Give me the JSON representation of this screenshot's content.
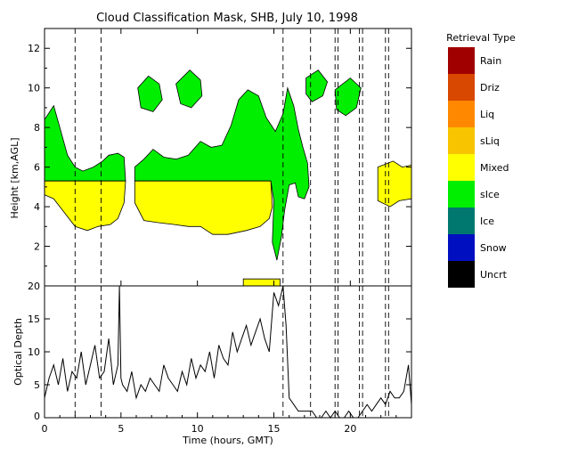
{
  "figure": {
    "title": "Cloud Classification Mask, SHB, July 10, 1998"
  },
  "chart_data": [
    {
      "type": "heatmap",
      "panel": "mask",
      "ylabel": "Height [km,AGL]",
      "xlim": [
        0,
        24
      ],
      "ylim": [
        0,
        13
      ],
      "x_ticks": [
        0,
        5,
        10,
        15,
        20
      ],
      "y_ticks": [
        2,
        4,
        6,
        8,
        10,
        12
      ],
      "grid": false,
      "categories": [
        "Rain",
        "Driz",
        "Liq",
        "sLiq",
        "Mixed",
        "sIce",
        "Ice",
        "Snow",
        "Uncrt"
      ],
      "legend": {
        "title": "Retrieval Type",
        "placement": "right",
        "items": [
          {
            "label": "Rain",
            "color": "#a00000"
          },
          {
            "label": "Driz",
            "color": "#d84800"
          },
          {
            "label": "Liq",
            "color": "#ff8800"
          },
          {
            "label": "sLiq",
            "color": "#f8c400"
          },
          {
            "label": "Mixed",
            "color": "#ffff00"
          },
          {
            "label": "sIce",
            "color": "#00ee00"
          },
          {
            "label": "Ice",
            "color": "#007870"
          },
          {
            "label": "Snow",
            "color": "#0010c0"
          },
          {
            "label": "Uncrt",
            "color": "#000000"
          }
        ]
      },
      "regions": [
        {
          "category": "sIce",
          "color": "#00ee00",
          "points": [
            [
              0,
              8.4
            ],
            [
              0.6,
              9.1
            ],
            [
              1.0,
              8.0
            ],
            [
              1.5,
              6.6
            ],
            [
              2.0,
              6.0
            ],
            [
              2.5,
              5.8
            ],
            [
              3.2,
              6.0
            ],
            [
              3.8,
              6.3
            ],
            [
              4.2,
              6.6
            ],
            [
              4.8,
              6.7
            ],
            [
              5.2,
              6.5
            ],
            [
              5.3,
              5.3
            ],
            [
              0,
              5.3
            ]
          ]
        },
        {
          "category": "sIce",
          "color": "#00ee00",
          "points": [
            [
              5.9,
              6.0
            ],
            [
              6.5,
              6.4
            ],
            [
              7.1,
              6.9
            ],
            [
              7.8,
              6.5
            ],
            [
              8.6,
              6.4
            ],
            [
              9.4,
              6.6
            ],
            [
              10.2,
              7.3
            ],
            [
              10.9,
              7.0
            ],
            [
              11.6,
              7.1
            ],
            [
              12.2,
              8.1
            ],
            [
              12.7,
              9.4
            ],
            [
              13.3,
              9.9
            ],
            [
              14.0,
              9.6
            ],
            [
              14.5,
              8.5
            ],
            [
              15.1,
              7.8
            ],
            [
              15.6,
              8.7
            ],
            [
              15.9,
              10.0
            ],
            [
              16.3,
              9.1
            ],
            [
              16.6,
              7.9
            ],
            [
              16.9,
              7.0
            ],
            [
              17.2,
              6.2
            ],
            [
              17.3,
              5.0
            ],
            [
              17.0,
              4.4
            ],
            [
              16.6,
              4.5
            ],
            [
              16.4,
              5.2
            ],
            [
              16.0,
              5.1
            ],
            [
              15.7,
              3.8
            ],
            [
              15.5,
              2.5
            ],
            [
              15.2,
              1.3
            ],
            [
              14.9,
              2.2
            ],
            [
              15.0,
              4.3
            ],
            [
              14.8,
              5.3
            ],
            [
              5.9,
              5.3
            ]
          ]
        },
        {
          "category": "sIce",
          "color": "#00ee00",
          "points": [
            [
              6.1,
              10.0
            ],
            [
              6.8,
              10.6
            ],
            [
              7.5,
              10.2
            ],
            [
              7.7,
              9.4
            ],
            [
              7.1,
              8.8
            ],
            [
              6.3,
              9.0
            ]
          ]
        },
        {
          "category": "sIce",
          "color": "#00ee00",
          "points": [
            [
              8.6,
              10.2
            ],
            [
              9.5,
              10.9
            ],
            [
              10.2,
              10.4
            ],
            [
              10.3,
              9.6
            ],
            [
              9.6,
              9.0
            ],
            [
              8.9,
              9.2
            ]
          ]
        },
        {
          "category": "sIce",
          "color": "#00ee00",
          "points": [
            [
              17.1,
              10.5
            ],
            [
              17.9,
              10.9
            ],
            [
              18.5,
              10.3
            ],
            [
              18.2,
              9.6
            ],
            [
              17.5,
              9.3
            ],
            [
              17.1,
              9.7
            ]
          ]
        },
        {
          "category": "sIce",
          "color": "#00ee00",
          "points": [
            [
              19.0,
              9.9
            ],
            [
              20.0,
              10.5
            ],
            [
              20.7,
              10.0
            ],
            [
              20.4,
              9.0
            ],
            [
              19.7,
              8.6
            ],
            [
              19.1,
              8.9
            ]
          ]
        },
        {
          "category": "Mixed",
          "color": "#ffff00",
          "points": [
            [
              0,
              5.3
            ],
            [
              5.3,
              5.3
            ],
            [
              5.2,
              4.2
            ],
            [
              4.8,
              3.4
            ],
            [
              4.3,
              3.1
            ],
            [
              3.5,
              3.0
            ],
            [
              2.8,
              2.8
            ],
            [
              2.0,
              3.0
            ],
            [
              1.3,
              3.7
            ],
            [
              0.6,
              4.4
            ],
            [
              0,
              4.6
            ]
          ]
        },
        {
          "category": "Mixed",
          "color": "#ffff00",
          "points": [
            [
              5.9,
              5.3
            ],
            [
              14.8,
              5.3
            ],
            [
              14.9,
              4.0
            ],
            [
              14.7,
              3.4
            ],
            [
              14.1,
              3.0
            ],
            [
              13.2,
              2.8
            ],
            [
              12.0,
              2.6
            ],
            [
              11.0,
              2.6
            ],
            [
              10.2,
              3.0
            ],
            [
              9.4,
              3.0
            ],
            [
              8.5,
              3.1
            ],
            [
              7.4,
              3.2
            ],
            [
              6.5,
              3.3
            ],
            [
              5.9,
              4.2
            ]
          ]
        },
        {
          "category": "Mixed",
          "color": "#ffff00",
          "points": [
            [
              21.8,
              6.0
            ],
            [
              22.8,
              6.3
            ],
            [
              23.4,
              6.0
            ],
            [
              24.0,
              6.1
            ],
            [
              24.0,
              4.4
            ],
            [
              23.2,
              4.3
            ],
            [
              22.6,
              4.0
            ],
            [
              21.8,
              4.3
            ]
          ]
        },
        {
          "category": "Mixed",
          "color": "#ffff00",
          "points": [
            [
              13.0,
              0.35
            ],
            [
              15.4,
              0.35
            ],
            [
              15.4,
              0.0
            ],
            [
              13.0,
              0.0
            ]
          ]
        }
      ],
      "marker_lines_x": [
        2.0,
        3.7,
        15.6,
        17.4,
        19.0,
        19.2,
        20.6,
        20.8,
        22.3,
        22.5
      ]
    },
    {
      "type": "line",
      "panel": "optical-depth",
      "xlabel": "Time (hours, GMT)",
      "ylabel": "Optical Depth",
      "xlim": [
        0,
        24
      ],
      "ylim": [
        0,
        20
      ],
      "x_ticks": [
        0,
        5,
        10,
        15,
        20
      ],
      "y_ticks": [
        0,
        5,
        10,
        15,
        20
      ],
      "grid": false,
      "x": [
        0,
        0.3,
        0.6,
        0.9,
        1.2,
        1.5,
        1.8,
        2.1,
        2.4,
        2.7,
        3.0,
        3.3,
        3.6,
        3.9,
        4.2,
        4.5,
        4.8,
        4.9,
        5.0,
        5.1,
        5.4,
        5.7,
        6.0,
        6.3,
        6.6,
        6.9,
        7.2,
        7.5,
        7.8,
        8.1,
        8.4,
        8.7,
        9.0,
        9.3,
        9.6,
        9.9,
        10.2,
        10.5,
        10.8,
        11.1,
        11.4,
        11.7,
        12.0,
        12.3,
        12.6,
        12.9,
        13.2,
        13.5,
        13.8,
        14.1,
        14.4,
        14.7,
        15.0,
        15.3,
        15.6,
        15.8,
        16.0,
        16.3,
        16.6,
        16.9,
        17.2,
        17.5,
        17.8,
        18.1,
        18.4,
        18.7,
        19.0,
        19.3,
        19.6,
        19.9,
        20.2,
        20.5,
        20.8,
        21.1,
        21.4,
        21.7,
        22.0,
        22.3,
        22.6,
        22.9,
        23.2,
        23.5,
        23.8,
        24.0
      ],
      "y": [
        3,
        6,
        8,
        5,
        9,
        4,
        7,
        6,
        10,
        5,
        8,
        11,
        6,
        7,
        12,
        5,
        8,
        20,
        6,
        5,
        4,
        7,
        3,
        5,
        4,
        6,
        5,
        4,
        8,
        6,
        5,
        4,
        7,
        5,
        9,
        6,
        8,
        7,
        10,
        6,
        11,
        9,
        8,
        13,
        10,
        12,
        14,
        11,
        13,
        15,
        12,
        10,
        19,
        17,
        20,
        14,
        3,
        2,
        1,
        1,
        1,
        1,
        0,
        0,
        1,
        0,
        1,
        0,
        0,
        1,
        0,
        0,
        1,
        2,
        1,
        2,
        3,
        2,
        4,
        3,
        3,
        4,
        8,
        2
      ]
    }
  ]
}
